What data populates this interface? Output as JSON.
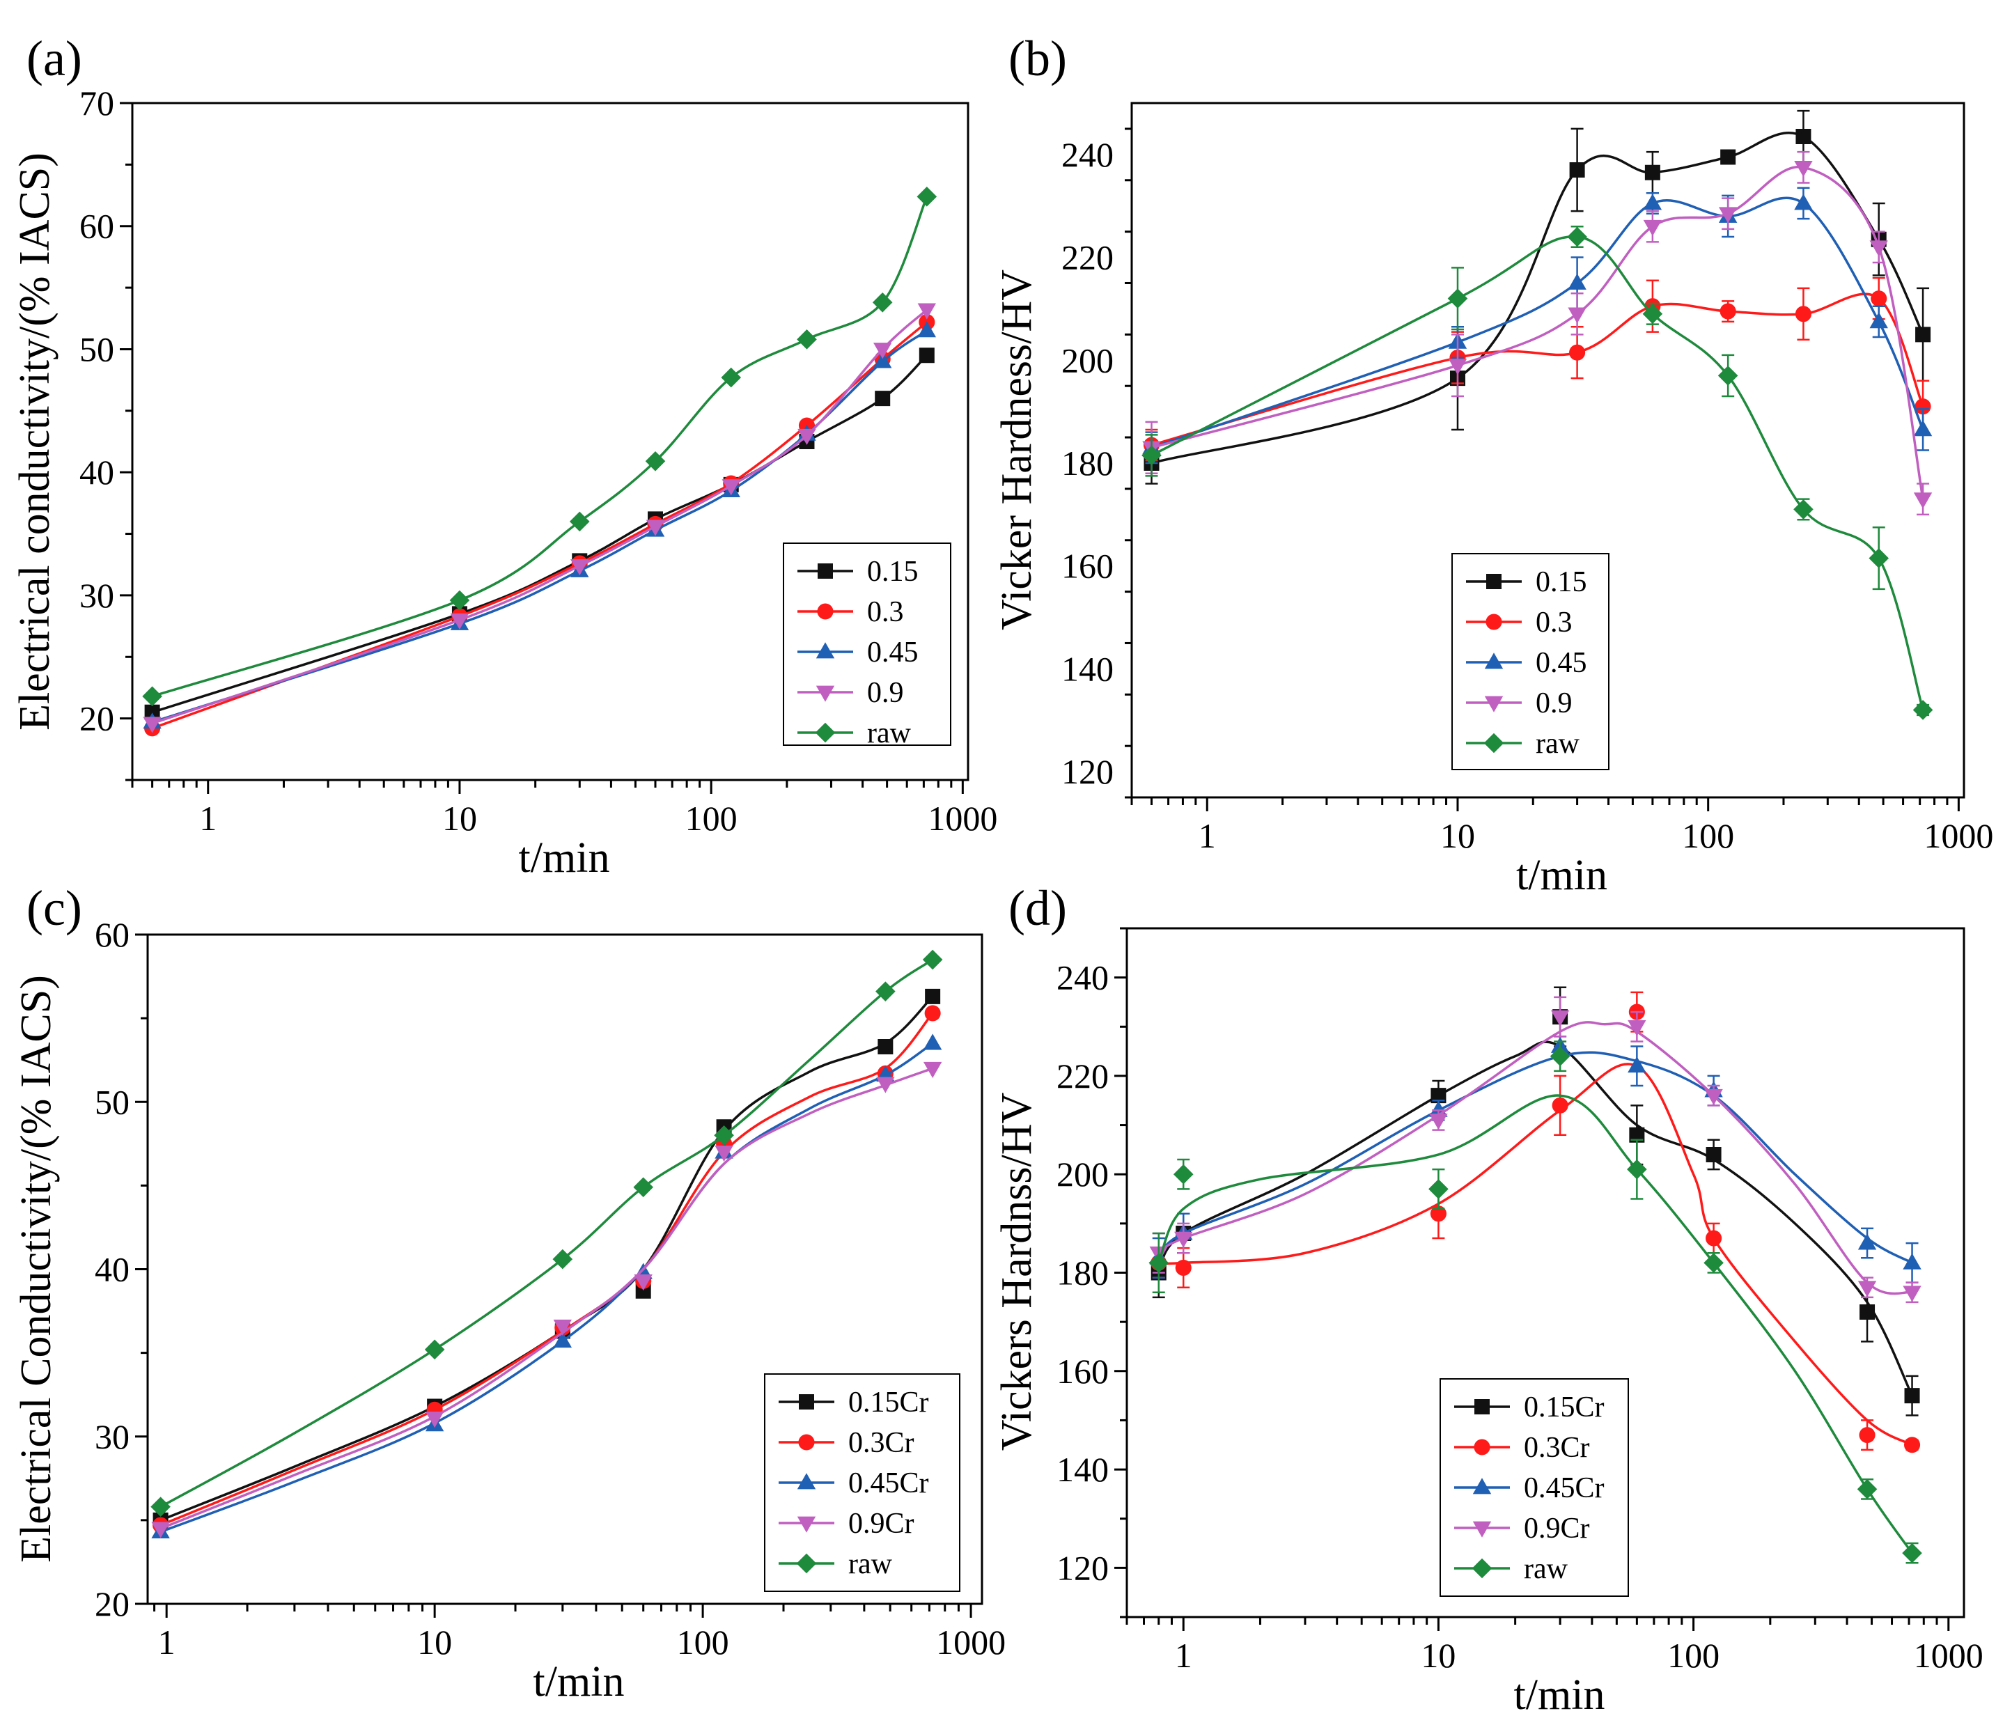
{
  "colors": {
    "0.15": "#111111",
    "0.3": "#ff1a1a",
    "0.45": "#1f5fb4",
    "0.9": "#c05fc0",
    "raw": "#1e8a3c"
  },
  "chart_data": [
    {
      "panel_label": "(a)",
      "type": "line",
      "xscale": "log",
      "xlabel": "t/min",
      "ylabel": "Electrical conductivity/(% IACS)",
      "xticks": [
        "1",
        "10",
        "100",
        "1000"
      ],
      "yticks": [
        "20",
        "30",
        "40",
        "50",
        "60",
        "70"
      ],
      "xlim": [
        0.5,
        1050
      ],
      "ylim": [
        15,
        70
      ],
      "legend_position": "bottom-right",
      "series": [
        {
          "name": "0.15",
          "marker": "square",
          "x": [
            0.6,
            10,
            30,
            60,
            120,
            240,
            480,
            720
          ],
          "y": [
            20.5,
            28.5,
            32.8,
            36.2,
            39.0,
            42.5,
            46.0,
            49.5
          ]
        },
        {
          "name": "0.3",
          "marker": "circle",
          "x": [
            0.6,
            10,
            30,
            60,
            120,
            240,
            480,
            720
          ],
          "y": [
            19.2,
            28.3,
            32.6,
            35.8,
            39.1,
            43.8,
            49.2,
            52.2
          ]
        },
        {
          "name": "0.45",
          "marker": "triangle-up",
          "x": [
            0.6,
            10,
            30,
            60,
            120,
            240,
            480,
            720
          ],
          "y": [
            19.7,
            27.7,
            32.0,
            35.3,
            38.5,
            43.1,
            49.0,
            51.5
          ]
        },
        {
          "name": "0.9",
          "marker": "triangle-down",
          "x": [
            0.6,
            10,
            30,
            60,
            120,
            240,
            480,
            720
          ],
          "y": [
            19.6,
            28.0,
            32.4,
            35.6,
            38.9,
            43.0,
            50.0,
            53.2
          ]
        },
        {
          "name": "raw",
          "marker": "diamond",
          "x": [
            0.6,
            10,
            30,
            60,
            120,
            240,
            480,
            720
          ],
          "y": [
            21.8,
            29.6,
            36.0,
            40.9,
            47.7,
            50.8,
            53.8,
            62.4
          ]
        }
      ]
    },
    {
      "panel_label": "(b)",
      "type": "line",
      "xscale": "log",
      "xlabel": "t/min",
      "ylabel": "Vicker Hardness/HV",
      "xticks": [
        "1",
        "10",
        "100",
        "1000"
      ],
      "yticks": [
        "120",
        "140",
        "160",
        "180",
        "200",
        "220",
        "240"
      ],
      "xlim": [
        0.5,
        1050
      ],
      "ylim": [
        115,
        250
      ],
      "legend_position": "bottom-center",
      "error_bars": true,
      "series": [
        {
          "name": "0.15",
          "marker": "square",
          "x": [
            0.6,
            10,
            30,
            60,
            120,
            240,
            480,
            720
          ],
          "y": [
            180,
            196.5,
            237,
            236.5,
            239.5,
            243.5,
            223.5,
            205
          ],
          "err": [
            4,
            10,
            8,
            4,
            1,
            5,
            7,
            9
          ]
        },
        {
          "name": "0.3",
          "marker": "circle",
          "x": [
            0.6,
            10,
            30,
            60,
            120,
            240,
            480,
            720
          ],
          "y": [
            183.5,
            200.5,
            201.5,
            210.5,
            209.5,
            209,
            212,
            191
          ],
          "err": [
            3,
            5,
            5,
            5,
            2,
            5,
            4,
            5
          ]
        },
        {
          "name": "0.45",
          "marker": "triangle-up",
          "x": [
            0.6,
            10,
            30,
            60,
            120,
            240,
            480,
            720
          ],
          "y": [
            183,
            203.5,
            215,
            230.5,
            228,
            230.5,
            207.5,
            186.5
          ],
          "err": [
            3,
            3,
            5,
            2,
            4,
            3,
            3,
            4
          ]
        },
        {
          "name": "0.9",
          "marker": "triangle-down",
          "x": [
            0.6,
            10,
            30,
            60,
            120,
            240,
            480,
            720
          ],
          "y": [
            183,
            199,
            209,
            226,
            228.5,
            237.5,
            222,
            173
          ],
          "err": [
            5,
            6,
            4,
            3,
            3,
            3,
            3,
            3
          ]
        },
        {
          "name": "raw",
          "marker": "diamond",
          "x": [
            0.6,
            10,
            30,
            60,
            120,
            240,
            480,
            720
          ],
          "y": [
            181.5,
            212,
            224,
            209,
            197,
            171,
            161.5,
            132
          ],
          "err": [
            4,
            6,
            2,
            2,
            4,
            2,
            6,
            1
          ]
        }
      ]
    },
    {
      "panel_label": "(c)",
      "type": "line",
      "xscale": "log",
      "xlabel": "t/min",
      "ylabel": "Electrical Conductivity/(% IACS)",
      "xticks": [
        "1",
        "10",
        "100",
        "1000"
      ],
      "yticks": [
        "20",
        "30",
        "40",
        "50",
        "60"
      ],
      "xlim": [
        0.85,
        1100
      ],
      "ylim": [
        20,
        60
      ],
      "legend_position": "bottom-right",
      "series": [
        {
          "name": "0.15Cr",
          "marker": "square",
          "x": [
            0.95,
            10,
            30,
            60,
            120,
            480,
            720
          ],
          "y": [
            25.0,
            31.8,
            36.3,
            38.7,
            48.5,
            53.3,
            56.3
          ],
          "smooth": [
            [
              0.95,
              25.0
            ],
            [
              3,
              28.2
            ],
            [
              10,
              31.8
            ],
            [
              30,
              36.3
            ],
            [
              60,
              40.0
            ],
            [
              120,
              48.3
            ],
            [
              250,
              51.8
            ],
            [
              480,
              53.5
            ],
            [
              720,
              56.3
            ]
          ]
        },
        {
          "name": "0.3Cr",
          "marker": "circle",
          "x": [
            0.95,
            10,
            30,
            60,
            120,
            480,
            720
          ],
          "y": [
            24.7,
            31.6,
            36.5,
            39.3,
            47.5,
            51.7,
            55.3
          ],
          "smooth": [
            [
              0.95,
              24.7
            ],
            [
              3,
              28.0
            ],
            [
              10,
              31.6
            ],
            [
              30,
              36.3
            ],
            [
              60,
              40.0
            ],
            [
              120,
              47.0
            ],
            [
              250,
              50.3
            ],
            [
              480,
              52.0
            ],
            [
              720,
              55.3
            ]
          ]
        },
        {
          "name": "0.45Cr",
          "marker": "triangle-up",
          "x": [
            0.95,
            10,
            30,
            60,
            120,
            480,
            720
          ],
          "y": [
            24.3,
            30.7,
            35.7,
            39.8,
            47.0,
            51.6,
            53.5
          ],
          "smooth": [
            [
              0.95,
              24.3
            ],
            [
              3,
              27.3
            ],
            [
              10,
              30.8
            ],
            [
              30,
              35.7
            ],
            [
              60,
              40.0
            ],
            [
              120,
              46.3
            ],
            [
              250,
              49.6
            ],
            [
              480,
              51.6
            ],
            [
              720,
              53.5
            ]
          ]
        },
        {
          "name": "0.9Cr",
          "marker": "triangle-down",
          "x": [
            0.95,
            10,
            30,
            60,
            120,
            480,
            720
          ],
          "y": [
            24.5,
            31.1,
            36.6,
            39.3,
            47.0,
            51.1,
            52.0
          ],
          "smooth": [
            [
              0.95,
              24.5
            ],
            [
              3,
              27.7
            ],
            [
              10,
              31.2
            ],
            [
              30,
              36.2
            ],
            [
              60,
              40.0
            ],
            [
              120,
              46.3
            ],
            [
              250,
              49.3
            ],
            [
              480,
              51.0
            ],
            [
              720,
              52.0
            ]
          ]
        },
        {
          "name": "raw",
          "marker": "diamond",
          "x": [
            0.95,
            10,
            30,
            60,
            120,
            480,
            720
          ],
          "y": [
            25.8,
            35.2,
            40.6,
            44.9,
            48.0,
            56.6,
            58.5
          ],
          "smooth": [
            [
              0.95,
              25.8
            ],
            [
              3,
              30.2
            ],
            [
              10,
              35.2
            ],
            [
              30,
              40.6
            ],
            [
              60,
              44.9
            ],
            [
              120,
              48.0
            ],
            [
              250,
              52.5
            ],
            [
              480,
              56.6
            ],
            [
              720,
              58.5
            ]
          ]
        }
      ]
    },
    {
      "panel_label": "(d)",
      "type": "line",
      "xscale": "log",
      "xlabel": "t/min",
      "ylabel": "Vickers Hardnss/HV",
      "xticks": [
        "1",
        "10",
        "100",
        "1000"
      ],
      "yticks": [
        "120",
        "140",
        "160",
        "180",
        "200",
        "220",
        "240"
      ],
      "xlim": [
        0.6,
        1150
      ],
      "ylim": [
        110,
        250
      ],
      "legend_position": "bottom-center",
      "error_bars": true,
      "series": [
        {
          "name": "0.15Cr",
          "marker": "square",
          "x": [
            0.8,
            1,
            10,
            30,
            60,
            120,
            480,
            720
          ],
          "y": [
            180,
            188,
            216,
            232,
            208,
            204,
            172,
            155
          ],
          "err": [
            5,
            4,
            3,
            6,
            6,
            3,
            6,
            4
          ],
          "smooth": [
            [
              0.8,
              180
            ],
            [
              1,
              188
            ],
            [
              3,
              200
            ],
            [
              10,
              216
            ],
            [
              20,
              224
            ],
            [
              30,
              226
            ],
            [
              60,
              210
            ],
            [
              120,
              203
            ],
            [
              250,
              190
            ],
            [
              480,
              174
            ],
            [
              720,
              155
            ]
          ]
        },
        {
          "name": "0.3Cr",
          "marker": "circle",
          "x": [
            0.8,
            1,
            10,
            30,
            60,
            120,
            480,
            720
          ],
          "y": [
            182,
            181,
            192,
            214,
            233,
            187,
            147,
            145
          ],
          "err": [
            3,
            4,
            5,
            6,
            4,
            3,
            3,
            1
          ],
          "smooth": [
            [
              0.8,
              182
            ],
            [
              1,
              182
            ],
            [
              3,
              184
            ],
            [
              10,
              194
            ],
            [
              30,
              213
            ],
            [
              60,
              222
            ],
            [
              100,
              200
            ],
            [
              120,
              187
            ],
            [
              250,
              166
            ],
            [
              480,
              150
            ],
            [
              720,
              145
            ]
          ]
        },
        {
          "name": "0.45Cr",
          "marker": "triangle-up",
          "x": [
            0.8,
            1,
            10,
            30,
            60,
            120,
            480,
            720
          ],
          "y": [
            183,
            188,
            213,
            226,
            222,
            217,
            186,
            182
          ],
          "err": [
            4,
            4,
            2,
            2,
            4,
            3,
            3,
            4
          ],
          "smooth": [
            [
              0.8,
              183
            ],
            [
              1,
              188
            ],
            [
              3,
              198
            ],
            [
              10,
              213
            ],
            [
              30,
              224
            ],
            [
              60,
              223
            ],
            [
              120,
              216
            ],
            [
              250,
              200
            ],
            [
              480,
              187
            ],
            [
              720,
              182
            ]
          ]
        },
        {
          "name": "0.9Cr",
          "marker": "triangle-down",
          "x": [
            0.8,
            1,
            10,
            30,
            60,
            120,
            480,
            720
          ],
          "y": [
            184,
            187,
            211,
            232,
            230,
            216,
            177,
            176
          ],
          "err": [
            4,
            3,
            2,
            4,
            3,
            2,
            2,
            2
          ],
          "smooth": [
            [
              0.8,
              184
            ],
            [
              1,
              187
            ],
            [
              3,
              196
            ],
            [
              10,
              212
            ],
            [
              30,
              229
            ],
            [
              45,
              230.5
            ],
            [
              60,
              229
            ],
            [
              120,
              216
            ],
            [
              250,
              198
            ],
            [
              480,
              178
            ],
            [
              720,
              176
            ]
          ]
        },
        {
          "name": "raw",
          "marker": "diamond",
          "x": [
            0.8,
            1,
            10,
            30,
            60,
            120,
            480,
            720
          ],
          "y": [
            182,
            200,
            197,
            224,
            201,
            182,
            136,
            123
          ],
          "err": [
            6,
            3,
            4,
            3,
            6,
            2,
            2,
            2
          ],
          "smooth": [
            [
              0.8,
              182
            ],
            [
              1,
              193
            ],
            [
              2,
              199
            ],
            [
              10,
              204
            ],
            [
              30,
              216
            ],
            [
              60,
              201
            ],
            [
              120,
              182
            ],
            [
              250,
              160
            ],
            [
              480,
              136
            ],
            [
              720,
              123
            ]
          ]
        }
      ]
    }
  ]
}
